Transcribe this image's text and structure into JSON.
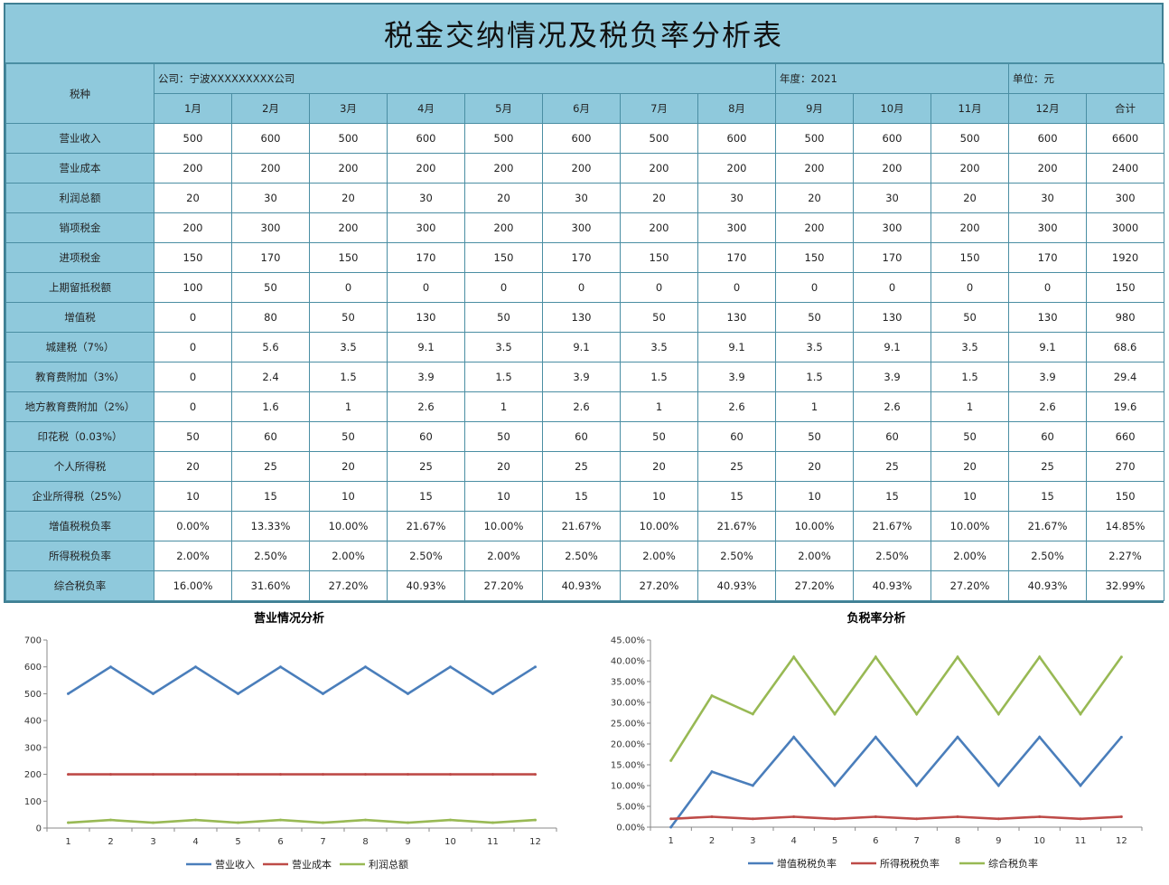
{
  "sheet": {
    "title": "税金交纳情况及税负率分析表",
    "corner_label": "税种",
    "company": "公司：宁波XXXXXXXXX公司",
    "year": "年度：2021",
    "unit": "单位：元",
    "months": [
      "1月",
      "2月",
      "3月",
      "4月",
      "5月",
      "6月",
      "7月",
      "8月",
      "9月",
      "10月",
      "11月",
      "12月",
      "合计"
    ],
    "rows": [
      {
        "label": "营业收入",
        "values": [
          "500",
          "600",
          "500",
          "600",
          "500",
          "600",
          "500",
          "600",
          "500",
          "600",
          "500",
          "600",
          "6600"
        ]
      },
      {
        "label": "营业成本",
        "values": [
          "200",
          "200",
          "200",
          "200",
          "200",
          "200",
          "200",
          "200",
          "200",
          "200",
          "200",
          "200",
          "2400"
        ]
      },
      {
        "label": "利润总额",
        "values": [
          "20",
          "30",
          "20",
          "30",
          "20",
          "30",
          "20",
          "30",
          "20",
          "30",
          "20",
          "30",
          "300"
        ]
      },
      {
        "label": "销项税金",
        "values": [
          "200",
          "300",
          "200",
          "300",
          "200",
          "300",
          "200",
          "300",
          "200",
          "300",
          "200",
          "300",
          "3000"
        ]
      },
      {
        "label": "进项税金",
        "values": [
          "150",
          "170",
          "150",
          "170",
          "150",
          "170",
          "150",
          "170",
          "150",
          "170",
          "150",
          "170",
          "1920"
        ]
      },
      {
        "label": "上期留抵税额",
        "values": [
          "100",
          "50",
          "0",
          "0",
          "0",
          "0",
          "0",
          "0",
          "0",
          "0",
          "0",
          "0",
          "150"
        ]
      },
      {
        "label": "增值税",
        "values": [
          "0",
          "80",
          "50",
          "130",
          "50",
          "130",
          "50",
          "130",
          "50",
          "130",
          "50",
          "130",
          "980"
        ]
      },
      {
        "label": "城建税（7%）",
        "values": [
          "0",
          "5.6",
          "3.5",
          "9.1",
          "3.5",
          "9.1",
          "3.5",
          "9.1",
          "3.5",
          "9.1",
          "3.5",
          "9.1",
          "68.6"
        ]
      },
      {
        "label": "教育费附加（3%）",
        "values": [
          "0",
          "2.4",
          "1.5",
          "3.9",
          "1.5",
          "3.9",
          "1.5",
          "3.9",
          "1.5",
          "3.9",
          "1.5",
          "3.9",
          "29.4"
        ]
      },
      {
        "label": "地方教育费附加（2%）",
        "values": [
          "0",
          "1.6",
          "1",
          "2.6",
          "1",
          "2.6",
          "1",
          "2.6",
          "1",
          "2.6",
          "1",
          "2.6",
          "19.6"
        ]
      },
      {
        "label": "印花税（0.03%）",
        "values": [
          "50",
          "60",
          "50",
          "60",
          "50",
          "60",
          "50",
          "60",
          "50",
          "60",
          "50",
          "60",
          "660"
        ]
      },
      {
        "label": "个人所得税",
        "values": [
          "20",
          "25",
          "20",
          "25",
          "20",
          "25",
          "20",
          "25",
          "20",
          "25",
          "20",
          "25",
          "270"
        ]
      },
      {
        "label": "企业所得税（25%）",
        "values": [
          "10",
          "15",
          "10",
          "15",
          "10",
          "15",
          "10",
          "15",
          "10",
          "15",
          "10",
          "15",
          "150"
        ]
      },
      {
        "label": "增值税税负率",
        "values": [
          "0.00%",
          "13.33%",
          "10.00%",
          "21.67%",
          "10.00%",
          "21.67%",
          "10.00%",
          "21.67%",
          "10.00%",
          "21.67%",
          "10.00%",
          "21.67%",
          "14.85%"
        ]
      },
      {
        "label": "所得税税负率",
        "values": [
          "2.00%",
          "2.50%",
          "2.00%",
          "2.50%",
          "2.00%",
          "2.50%",
          "2.00%",
          "2.50%",
          "2.00%",
          "2.50%",
          "2.00%",
          "2.50%",
          "2.27%"
        ]
      },
      {
        "label": "综合税负率",
        "values": [
          "16.00%",
          "31.60%",
          "27.20%",
          "40.93%",
          "27.20%",
          "40.93%",
          "27.20%",
          "40.93%",
          "27.20%",
          "40.93%",
          "27.20%",
          "40.93%",
          "32.99%"
        ]
      }
    ]
  },
  "chart_data": [
    {
      "type": "line",
      "title": "营业情况分析",
      "xlabel": "",
      "ylabel": "",
      "x": [
        1,
        2,
        3,
        4,
        5,
        6,
        7,
        8,
        9,
        10,
        11,
        12
      ],
      "yticks": [
        "0",
        "100",
        "200",
        "300",
        "400",
        "500",
        "600",
        "700"
      ],
      "ylim": [
        0,
        700
      ],
      "grid": false,
      "legend": "bottom",
      "series": [
        {
          "name": "营业收入",
          "color": "#4a7ebb",
          "values": [
            500,
            600,
            500,
            600,
            500,
            600,
            500,
            600,
            500,
            600,
            500,
            600
          ]
        },
        {
          "name": "营业成本",
          "color": "#be4b48",
          "values": [
            200,
            200,
            200,
            200,
            200,
            200,
            200,
            200,
            200,
            200,
            200,
            200
          ]
        },
        {
          "name": "利润总额",
          "color": "#98b954",
          "values": [
            20,
            30,
            20,
            30,
            20,
            30,
            20,
            30,
            20,
            30,
            20,
            30
          ]
        }
      ]
    },
    {
      "type": "line",
      "title": "负税率分析",
      "xlabel": "",
      "ylabel": "",
      "x": [
        1,
        2,
        3,
        4,
        5,
        6,
        7,
        8,
        9,
        10,
        11,
        12
      ],
      "yticks": [
        "0.00%",
        "5.00%",
        "10.00%",
        "15.00%",
        "20.00%",
        "25.00%",
        "30.00%",
        "35.00%",
        "40.00%",
        "45.00%"
      ],
      "ylim": [
        0,
        45
      ],
      "grid": false,
      "legend": "bottom",
      "series": [
        {
          "name": "增值税税负率",
          "color": "#4a7ebb",
          "values": [
            0,
            13.33,
            10,
            21.67,
            10,
            21.67,
            10,
            21.67,
            10,
            21.67,
            10,
            21.67
          ]
        },
        {
          "name": "所得税税负率",
          "color": "#be4b48",
          "values": [
            2,
            2.5,
            2,
            2.5,
            2,
            2.5,
            2,
            2.5,
            2,
            2.5,
            2,
            2.5
          ]
        },
        {
          "name": "综合税负率",
          "color": "#98b954",
          "values": [
            16,
            31.6,
            27.2,
            40.93,
            27.2,
            40.93,
            27.2,
            40.93,
            27.2,
            40.93,
            27.2,
            40.93
          ]
        }
      ]
    }
  ]
}
